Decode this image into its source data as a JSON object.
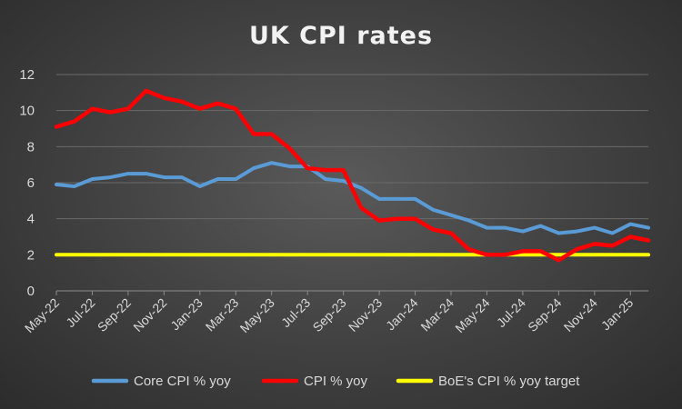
{
  "chart_data": {
    "type": "line",
    "title": "UK CPI rates",
    "xlabel": "",
    "ylabel": "",
    "ylim": [
      0,
      12
    ],
    "yticks": [
      0,
      2,
      4,
      6,
      8,
      10,
      12
    ],
    "grid": true,
    "legend_position": "bottom",
    "categories": [
      "May-22",
      "Jun-22",
      "Jul-22",
      "Aug-22",
      "Sep-22",
      "Oct-22",
      "Nov-22",
      "Dec-22",
      "Jan-23",
      "Feb-23",
      "Mar-23",
      "Apr-23",
      "May-23",
      "Jun-23",
      "Jul-23",
      "Aug-23",
      "Sep-23",
      "Oct-23",
      "Nov-23",
      "Dec-23",
      "Jan-24",
      "Feb-24",
      "Mar-24",
      "Apr-24",
      "May-24",
      "Jun-24",
      "Jul-24",
      "Aug-24",
      "Sep-24",
      "Oct-24",
      "Nov-24",
      "Dec-24",
      "Jan-25",
      "Feb-25"
    ],
    "tick_labels": [
      "May-22",
      "Jul-22",
      "Sep-22",
      "Nov-22",
      "Jan-23",
      "Mar-23",
      "May-23",
      "Jul-23",
      "Sep-23",
      "Nov-23",
      "Jan-24",
      "Mar-24",
      "May-24",
      "Jul-24",
      "Sep-24",
      "Nov-24",
      "Jan-25"
    ],
    "series": [
      {
        "name": "Core CPI % yoy",
        "color": "#5b9bd5",
        "values": [
          5.9,
          5.8,
          6.2,
          6.3,
          6.5,
          6.5,
          6.3,
          6.3,
          5.8,
          6.2,
          6.2,
          6.8,
          7.1,
          6.9,
          6.9,
          6.2,
          6.1,
          5.7,
          5.1,
          5.1,
          5.1,
          4.5,
          4.2,
          3.9,
          3.5,
          3.5,
          3.3,
          3.6,
          3.2,
          3.3,
          3.5,
          3.2,
          3.7,
          3.5
        ]
      },
      {
        "name": "CPI % yoy",
        "color": "#ff0000",
        "values": [
          9.1,
          9.4,
          10.1,
          9.9,
          10.1,
          11.1,
          10.7,
          10.5,
          10.1,
          10.4,
          10.1,
          8.7,
          8.7,
          7.9,
          6.8,
          6.7,
          6.7,
          4.6,
          3.9,
          4.0,
          4.0,
          3.4,
          3.2,
          2.3,
          2.0,
          2.0,
          2.2,
          2.2,
          1.7,
          2.3,
          2.6,
          2.5,
          3.0,
          2.8
        ]
      },
      {
        "name": "BoE's CPI % yoy target",
        "color": "#ffff00",
        "values": [
          2,
          2,
          2,
          2,
          2,
          2,
          2,
          2,
          2,
          2,
          2,
          2,
          2,
          2,
          2,
          2,
          2,
          2,
          2,
          2,
          2,
          2,
          2,
          2,
          2,
          2,
          2,
          2,
          2,
          2,
          2,
          2,
          2,
          2
        ]
      }
    ]
  }
}
